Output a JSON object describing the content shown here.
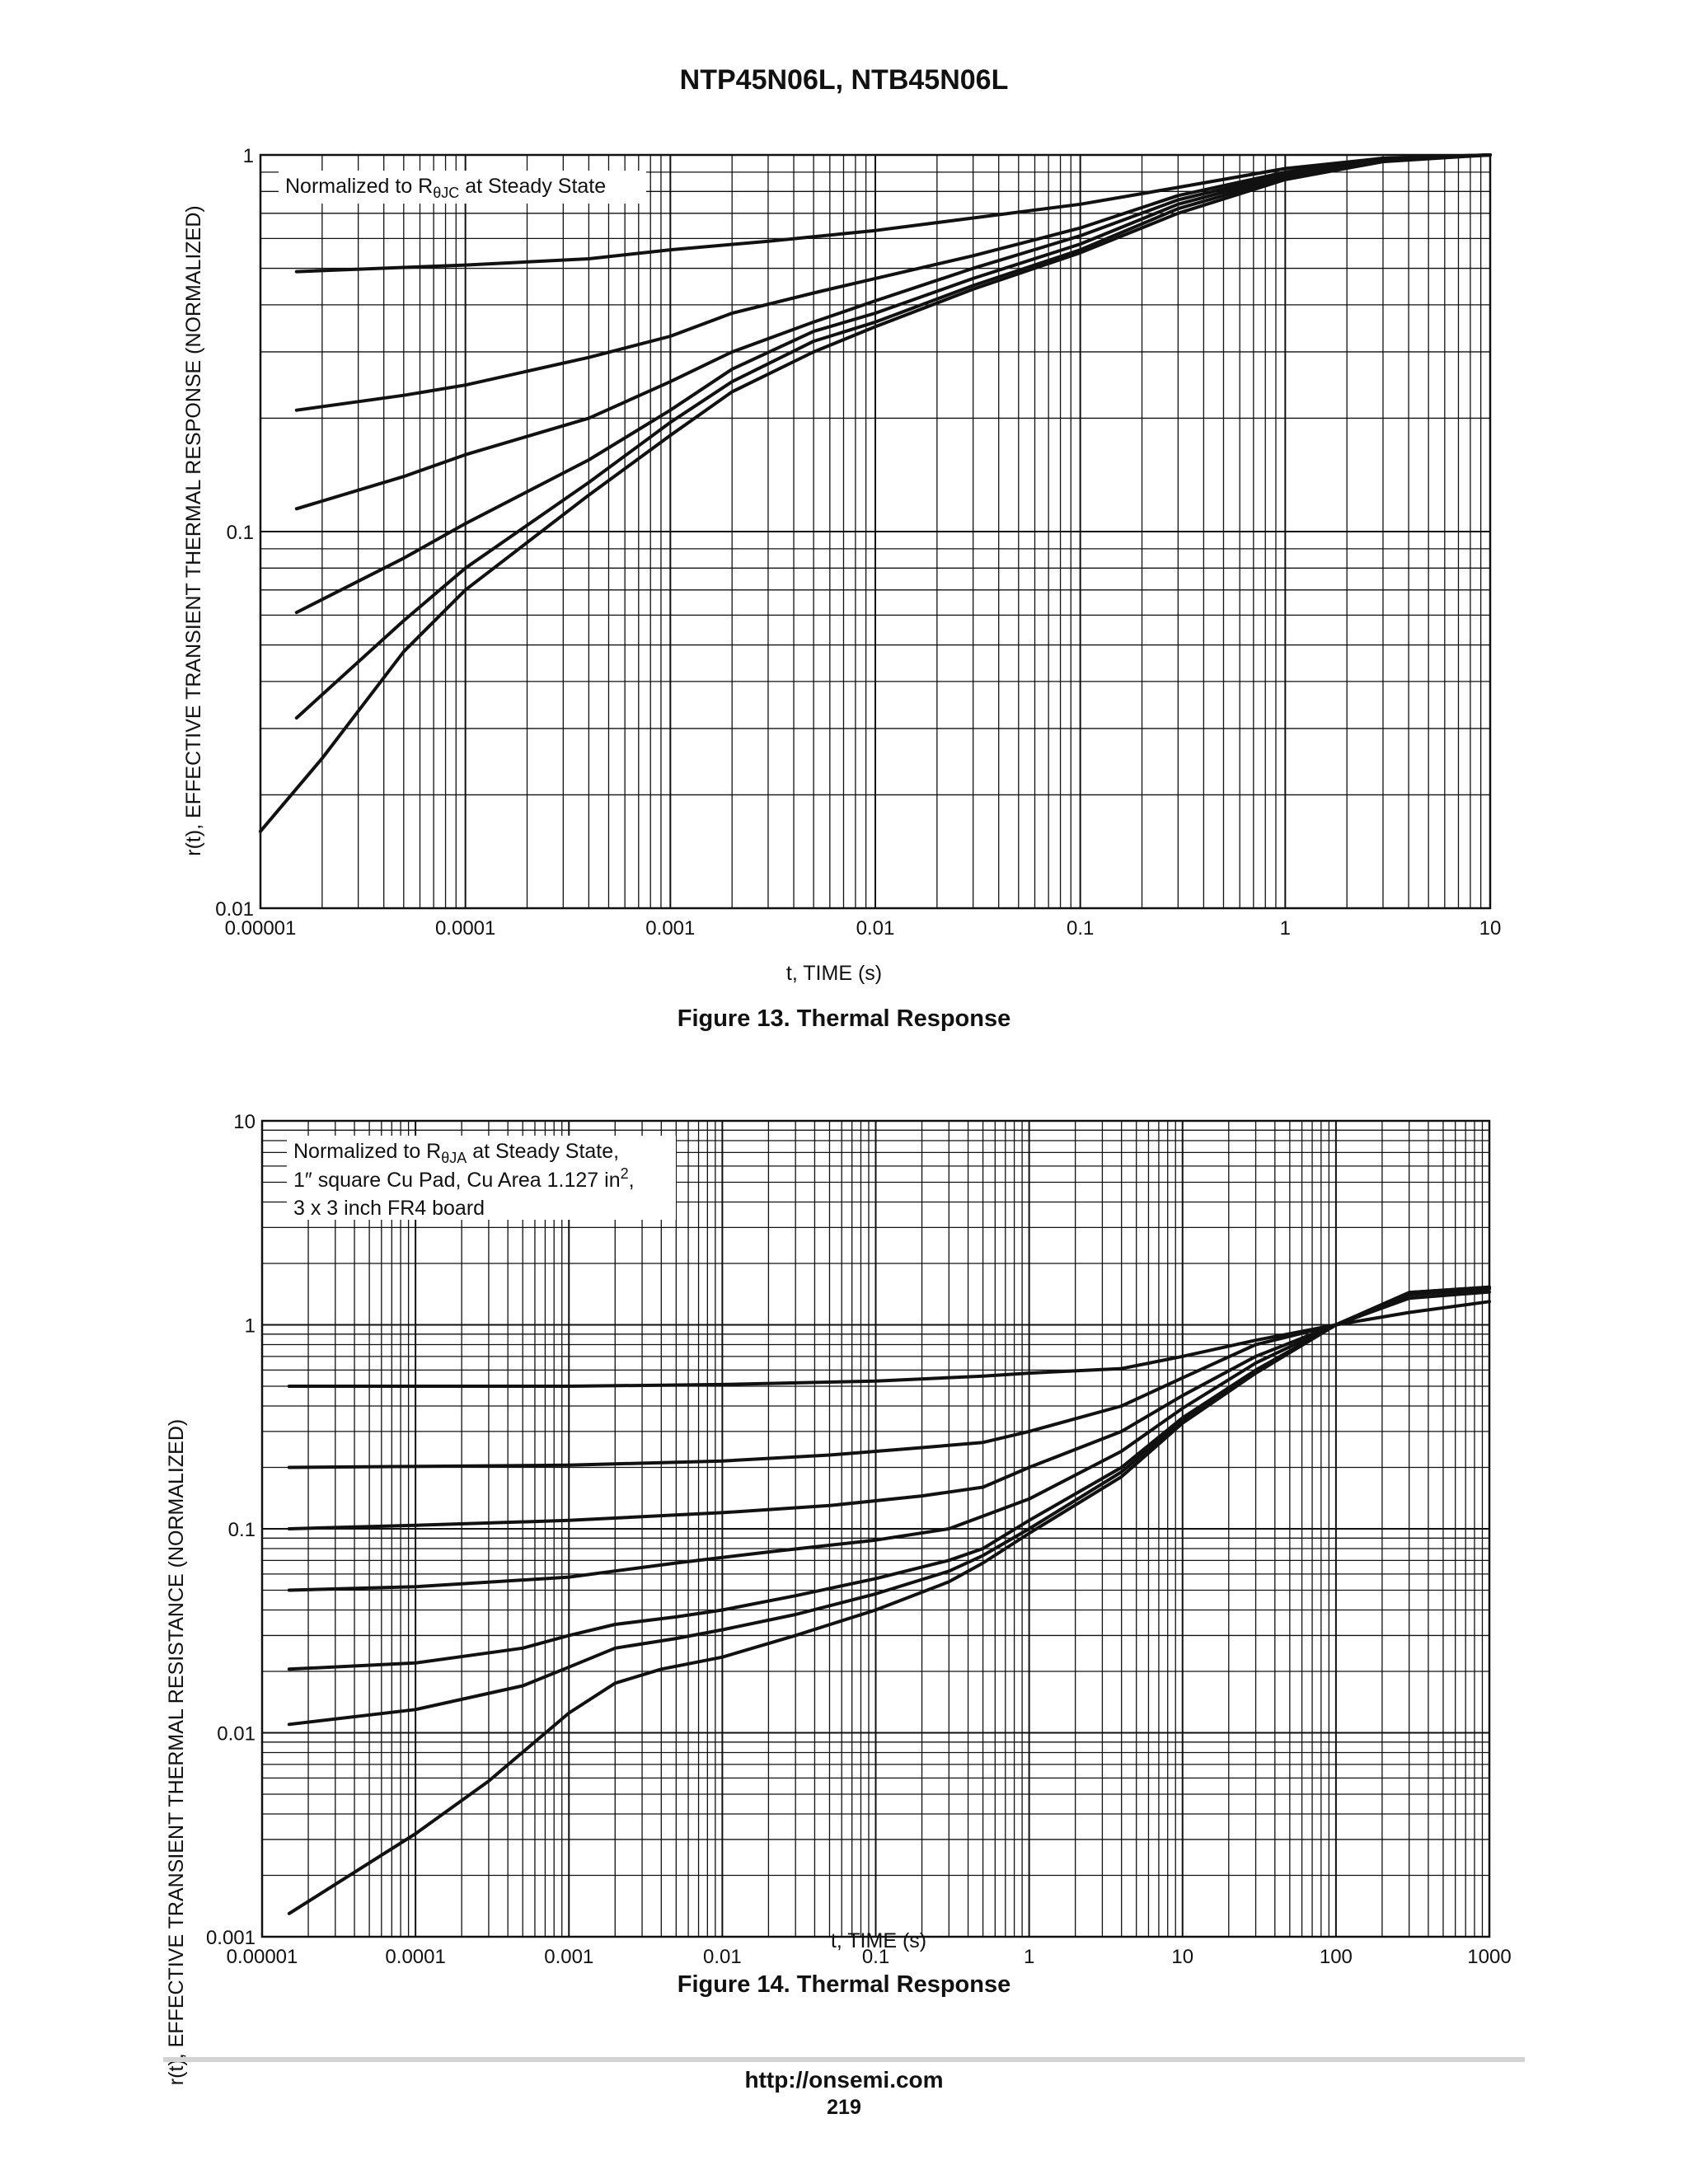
{
  "document": {
    "title": "NTP45N06L, NTB45N06L",
    "footer_url": "http://onsemi.com",
    "page_number": "219"
  },
  "chart_data": [
    {
      "type": "line",
      "caption": "Figure 13. Thermal Response",
      "annotation": "Normalized to RθJC at Steady State",
      "annotation_main": "Normalized to R",
      "annotation_sub": "θJC",
      "annotation_tail": " at Steady State",
      "xlabel": "t, TIME (s)",
      "ylabel": "r(t), EFFECTIVE TRANSIENT THERMAL RESPONSE (NORMALIZED)",
      "xscale": "log",
      "yscale": "log",
      "xlim": [
        1e-05,
        10
      ],
      "ylim": [
        0.01,
        1
      ],
      "grid": true,
      "xticks": [
        {
          "v": 1e-05,
          "label": "0.00001"
        },
        {
          "v": 0.0001,
          "label": "0.0001"
        },
        {
          "v": 0.001,
          "label": "0.001"
        },
        {
          "v": 0.01,
          "label": "0.01"
        },
        {
          "v": 0.1,
          "label": "0.1"
        },
        {
          "v": 1,
          "label": "1"
        },
        {
          "v": 10,
          "label": "10"
        }
      ],
      "yticks": [
        {
          "v": 0.01,
          "label": "0.01"
        },
        {
          "v": 0.1,
          "label": "0.1"
        },
        {
          "v": 1,
          "label": "1"
        }
      ],
      "series": [
        {
          "x": [
            1.5e-05,
            0.0001,
            0.0004,
            0.001,
            0.003,
            0.01,
            0.03,
            0.1,
            0.3,
            1,
            3,
            10
          ],
          "y": [
            0.49,
            0.51,
            0.53,
            0.56,
            0.59,
            0.63,
            0.68,
            0.74,
            0.82,
            0.92,
            0.98,
            1.0
          ]
        },
        {
          "x": [
            1.5e-05,
            5e-05,
            0.0001,
            0.0004,
            0.001,
            0.002,
            0.005,
            0.01,
            0.03,
            0.1,
            0.3,
            1,
            3,
            10
          ],
          "y": [
            0.21,
            0.23,
            0.245,
            0.29,
            0.33,
            0.38,
            0.43,
            0.47,
            0.54,
            0.64,
            0.78,
            0.9,
            0.98,
            1.0
          ]
        },
        {
          "x": [
            1.5e-05,
            5e-05,
            0.0001,
            0.0004,
            0.001,
            0.002,
            0.005,
            0.01,
            0.03,
            0.1,
            0.3,
            1,
            3,
            10
          ],
          "y": [
            0.115,
            0.14,
            0.16,
            0.2,
            0.25,
            0.3,
            0.36,
            0.41,
            0.5,
            0.61,
            0.76,
            0.89,
            0.97,
            1.0
          ]
        },
        {
          "x": [
            1.5e-05,
            5e-05,
            0.0001,
            0.0004,
            0.001,
            0.002,
            0.005,
            0.01,
            0.03,
            0.1,
            0.3,
            1,
            3,
            10
          ],
          "y": [
            0.061,
            0.085,
            0.105,
            0.155,
            0.21,
            0.27,
            0.34,
            0.38,
            0.47,
            0.58,
            0.74,
            0.88,
            0.97,
            1.0
          ]
        },
        {
          "x": [
            1.5e-05,
            5e-05,
            0.0001,
            0.0004,
            0.001,
            0.002,
            0.005,
            0.01,
            0.03,
            0.1,
            0.3,
            1,
            3,
            10
          ],
          "y": [
            0.032,
            0.058,
            0.08,
            0.135,
            0.195,
            0.25,
            0.32,
            0.36,
            0.45,
            0.56,
            0.72,
            0.87,
            0.97,
            1.0
          ]
        },
        {
          "x": [
            1e-05,
            2e-05,
            5e-05,
            0.0001,
            0.0004,
            0.001,
            0.002,
            0.005,
            0.01,
            0.03,
            0.1,
            0.3,
            1,
            3,
            10
          ],
          "y": [
            0.016,
            0.025,
            0.048,
            0.07,
            0.125,
            0.18,
            0.235,
            0.3,
            0.35,
            0.44,
            0.55,
            0.7,
            0.86,
            0.96,
            1.0
          ]
        }
      ]
    },
    {
      "type": "line",
      "caption": "Figure 14. Thermal Response",
      "annotation": "Normalized to RθJA at Steady State, 1″ square Cu Pad, Cu Area 1.127 in2, 3 x 3 inch FR4 board",
      "annotation_l1_main": "Normalized to R",
      "annotation_l1_sub": "θJA",
      "annotation_l1_tail": " at Steady State,",
      "annotation_l2_main": "1″ square Cu Pad, Cu Area 1.127 in",
      "annotation_l2_sup": "2",
      "annotation_l2_tail": ",",
      "annotation_l3": "3 x 3 inch FR4 board",
      "xlabel": "t, TIME (s)",
      "ylabel": "r(t), EFFECTIVE TRANSIENT THERMAL RESISTANCE (NORMALIZED)",
      "xscale": "log",
      "yscale": "log",
      "xlim": [
        1e-05,
        1000
      ],
      "ylim": [
        0.001,
        10
      ],
      "grid": true,
      "xticks": [
        {
          "v": 1e-05,
          "label": "0.00001"
        },
        {
          "v": 0.0001,
          "label": "0.0001"
        },
        {
          "v": 0.001,
          "label": "0.001"
        },
        {
          "v": 0.01,
          "label": "0.01"
        },
        {
          "v": 0.1,
          "label": "0.1"
        },
        {
          "v": 1,
          "label": "1"
        },
        {
          "v": 10,
          "label": "10"
        },
        {
          "v": 100,
          "label": "100"
        },
        {
          "v": 1000,
          "label": "1000"
        }
      ],
      "yticks": [
        {
          "v": 0.001,
          "label": "0.001"
        },
        {
          "v": 0.01,
          "label": "0.01"
        },
        {
          "v": 0.1,
          "label": "0.1"
        },
        {
          "v": 1,
          "label": "1"
        },
        {
          "v": 10,
          "label": "10"
        }
      ],
      "series": [
        {
          "x": [
            1.5e-05,
            0.001,
            0.01,
            0.1,
            0.5,
            1,
            4,
            10,
            30,
            100,
            300,
            1000
          ],
          "y": [
            0.5,
            0.5,
            0.51,
            0.53,
            0.56,
            0.58,
            0.61,
            0.7,
            0.84,
            1.0,
            1.15,
            1.3
          ]
        },
        {
          "x": [
            1.5e-05,
            0.001,
            0.01,
            0.05,
            0.2,
            0.5,
            1,
            4,
            10,
            30,
            100,
            300,
            1000
          ],
          "y": [
            0.2,
            0.205,
            0.215,
            0.23,
            0.25,
            0.265,
            0.3,
            0.4,
            0.55,
            0.8,
            1.0,
            1.35,
            1.45
          ]
        },
        {
          "x": [
            1.5e-05,
            0.0001,
            0.001,
            0.01,
            0.05,
            0.2,
            0.5,
            1,
            4,
            10,
            30,
            100,
            300,
            1000
          ],
          "y": [
            0.1,
            0.104,
            0.11,
            0.12,
            0.13,
            0.145,
            0.16,
            0.2,
            0.3,
            0.45,
            0.7,
            1.0,
            1.4,
            1.5
          ]
        },
        {
          "x": [
            1.5e-05,
            0.0001,
            0.001,
            0.005,
            0.02,
            0.1,
            0.3,
            1,
            4,
            10,
            30,
            100,
            300,
            1000
          ],
          "y": [
            0.05,
            0.052,
            0.058,
            0.068,
            0.077,
            0.088,
            0.1,
            0.14,
            0.24,
            0.39,
            0.65,
            1.0,
            1.42,
            1.52
          ]
        },
        {
          "x": [
            1.5e-05,
            0.0001,
            0.0005,
            0.001,
            0.002,
            0.005,
            0.01,
            0.03,
            0.1,
            0.3,
            0.5,
            1,
            4,
            10,
            30,
            100,
            300,
            1000
          ],
          "y": [
            0.0205,
            0.022,
            0.026,
            0.03,
            0.034,
            0.037,
            0.04,
            0.047,
            0.057,
            0.07,
            0.08,
            0.11,
            0.2,
            0.35,
            0.6,
            1.0,
            1.43,
            1.52
          ]
        },
        {
          "x": [
            1.5e-05,
            0.0001,
            0.0005,
            0.001,
            0.002,
            0.005,
            0.01,
            0.03,
            0.1,
            0.3,
            0.5,
            1,
            4,
            10,
            30,
            100,
            300,
            1000
          ],
          "y": [
            0.011,
            0.013,
            0.017,
            0.021,
            0.026,
            0.029,
            0.032,
            0.038,
            0.048,
            0.062,
            0.074,
            0.1,
            0.19,
            0.34,
            0.59,
            1.0,
            1.44,
            1.53
          ]
        },
        {
          "x": [
            1.5e-05,
            0.0001,
            0.0003,
            0.001,
            0.002,
            0.004,
            0.01,
            0.03,
            0.1,
            0.3,
            0.5,
            1,
            4,
            10,
            30,
            100,
            300,
            1000
          ],
          "y": [
            0.0013,
            0.0032,
            0.0058,
            0.0125,
            0.0175,
            0.0205,
            0.0235,
            0.03,
            0.04,
            0.055,
            0.068,
            0.095,
            0.18,
            0.33,
            0.58,
            1.0,
            1.44,
            1.53
          ]
        }
      ]
    }
  ]
}
